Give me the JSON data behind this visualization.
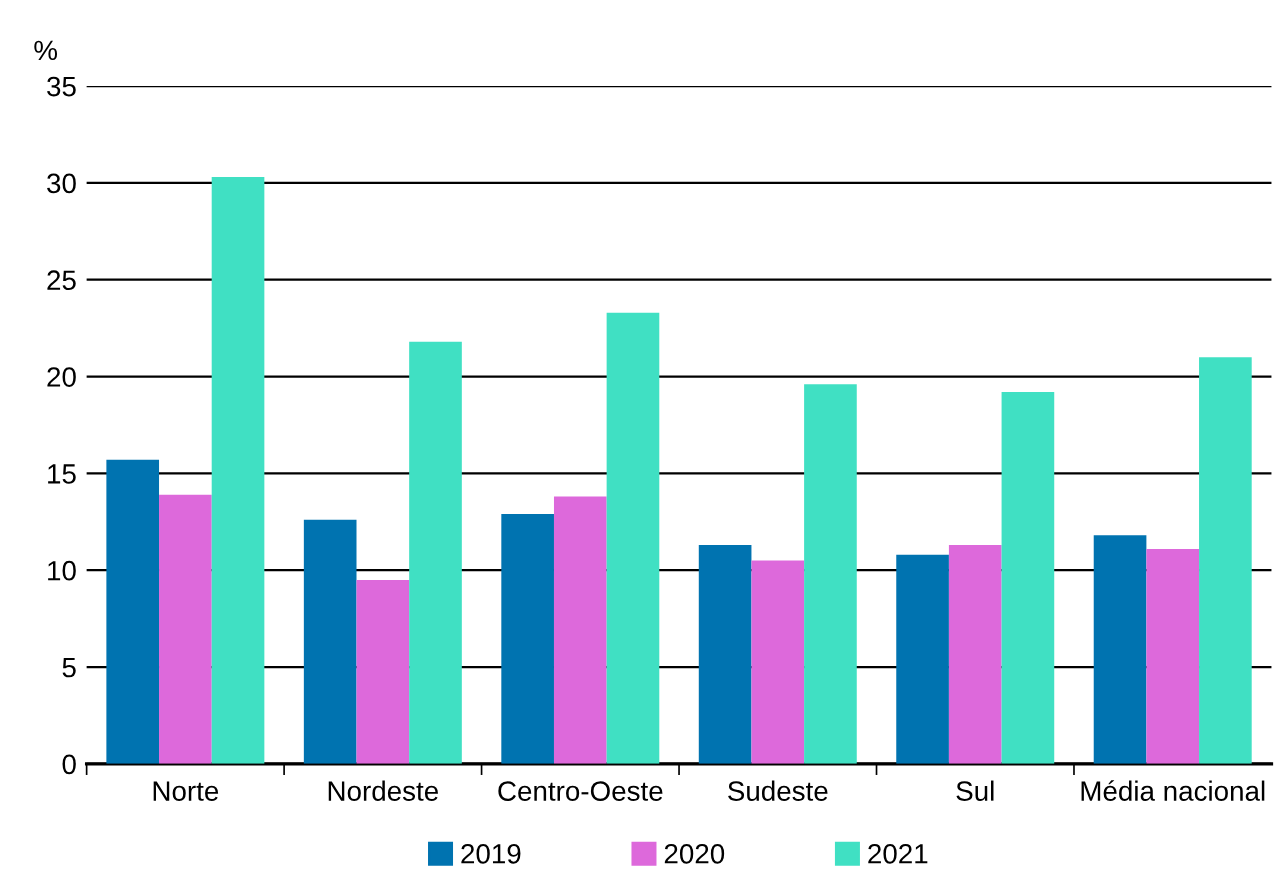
{
  "chart_data": {
    "type": "bar",
    "ylabel": "%",
    "categories": [
      "Norte",
      "Nordeste",
      "Centro-Oeste",
      "Sudeste",
      "Sul",
      "Média nacional"
    ],
    "series": [
      {
        "name": "2019",
        "color": "#0073b0",
        "values": [
          15.7,
          12.6,
          12.9,
          11.3,
          10.8,
          11.8
        ]
      },
      {
        "name": "2020",
        "color": "#dd69db",
        "values": [
          13.9,
          9.5,
          13.8,
          10.5,
          11.3,
          11.1
        ]
      },
      {
        "name": "2021",
        "color": "#40e0c3",
        "values": [
          30.3,
          21.8,
          23.3,
          19.6,
          19.2,
          21.0
        ]
      }
    ],
    "ylim": [
      0,
      35
    ],
    "yticks": [
      0,
      5,
      10,
      15,
      20,
      25,
      30,
      35
    ],
    "grid": "y",
    "legend": "bottom"
  }
}
